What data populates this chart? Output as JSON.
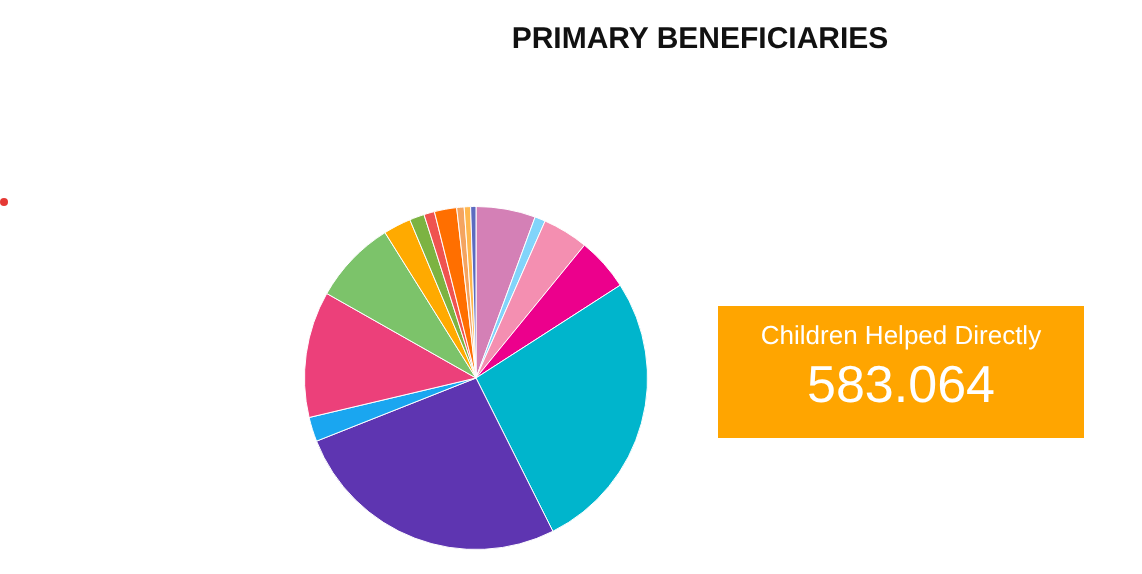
{
  "chart_data": {
    "type": "pie",
    "title": "PRIMARY BENEFICIARIES",
    "categories": [
      null,
      null,
      null,
      null,
      null,
      null,
      null,
      null,
      null,
      null,
      null,
      null,
      null,
      null,
      null,
      null
    ],
    "values": [
      5.6,
      1,
      4.3,
      5,
      26.7,
      26.4,
      2.3,
      11.9,
      7.9,
      2.6,
      1.4,
      1,
      2.1,
      0.7,
      0.6,
      0.5
    ],
    "colors": [
      "#d480b6",
      "#81d4fa",
      "#f48fb1",
      "#ec008c",
      "#00b5cc",
      "#5e35b1",
      "#1aa6f0",
      "#ec407a",
      "#7cc36a",
      "#ffaa00",
      "#7cb342",
      "#ef5350",
      "#ff6f00",
      "#f4a460",
      "#ffb74d",
      "#5c6bc0"
    ],
    "legend": false,
    "annotations": [
      "Children Helped Directly",
      "583.064"
    ]
  }
}
